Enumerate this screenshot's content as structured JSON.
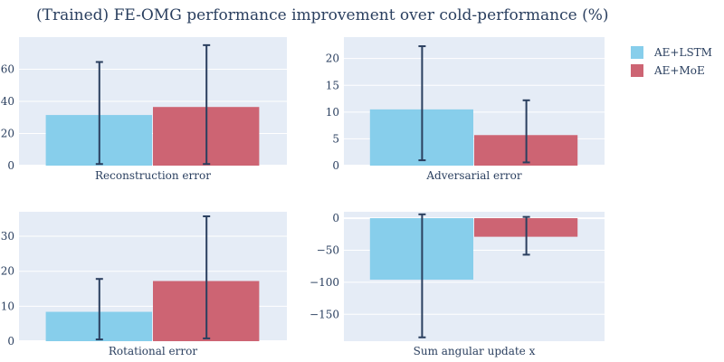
{
  "title": "(Trained) FE-OMG performance improvement over cold-performance (%)",
  "colors": {
    "plot_bg": "#e5ecf6",
    "grid": "#ffffff",
    "error_bar": "#2a3f5f"
  },
  "chart_data": [
    {
      "type": "bar",
      "category": "Reconstruction error",
      "ylim": [
        0,
        80
      ],
      "yticks": [
        0,
        20,
        40,
        60
      ],
      "series": [
        {
          "name": "AE+LSTM",
          "value": 31.5,
          "error_low": 1,
          "error_high": 64.5
        },
        {
          "name": "AE+MoE",
          "value": 36.5,
          "error_low": 1,
          "error_high": 75
        }
      ]
    },
    {
      "type": "bar",
      "category": "Adversarial error",
      "ylim": [
        0,
        24
      ],
      "yticks": [
        0,
        5,
        10,
        15,
        20
      ],
      "series": [
        {
          "name": "AE+LSTM",
          "value": 10.5,
          "error_low": 1,
          "error_high": 22.3
        },
        {
          "name": "AE+MoE",
          "value": 5.7,
          "error_low": 0.6,
          "error_high": 12.2
        }
      ]
    },
    {
      "type": "bar",
      "category": "Rotational error",
      "ylim": [
        0,
        37
      ],
      "yticks": [
        0,
        10,
        20,
        30
      ],
      "series": [
        {
          "name": "AE+LSTM",
          "value": 8.4,
          "error_low": 0.5,
          "error_high": 17.8
        },
        {
          "name": "AE+MoE",
          "value": 17.2,
          "error_low": 0.8,
          "error_high": 35.7
        }
      ]
    },
    {
      "type": "bar",
      "category": "Sum angular update x",
      "ylim": [
        -192,
        10
      ],
      "yticks": [
        -150,
        -100,
        -50,
        0
      ],
      "series": [
        {
          "name": "AE+LSTM",
          "value": -96,
          "error_low": -186,
          "error_high": 6
        },
        {
          "name": "AE+MoE",
          "value": -29,
          "error_low": -57,
          "error_high": 2
        }
      ]
    }
  ],
  "legend": {
    "placement": "top-right",
    "items": [
      {
        "name": "AE+LSTM",
        "color": "#87ceeb"
      },
      {
        "name": "AE+MoE",
        "color": "#cd6473"
      }
    ]
  }
}
